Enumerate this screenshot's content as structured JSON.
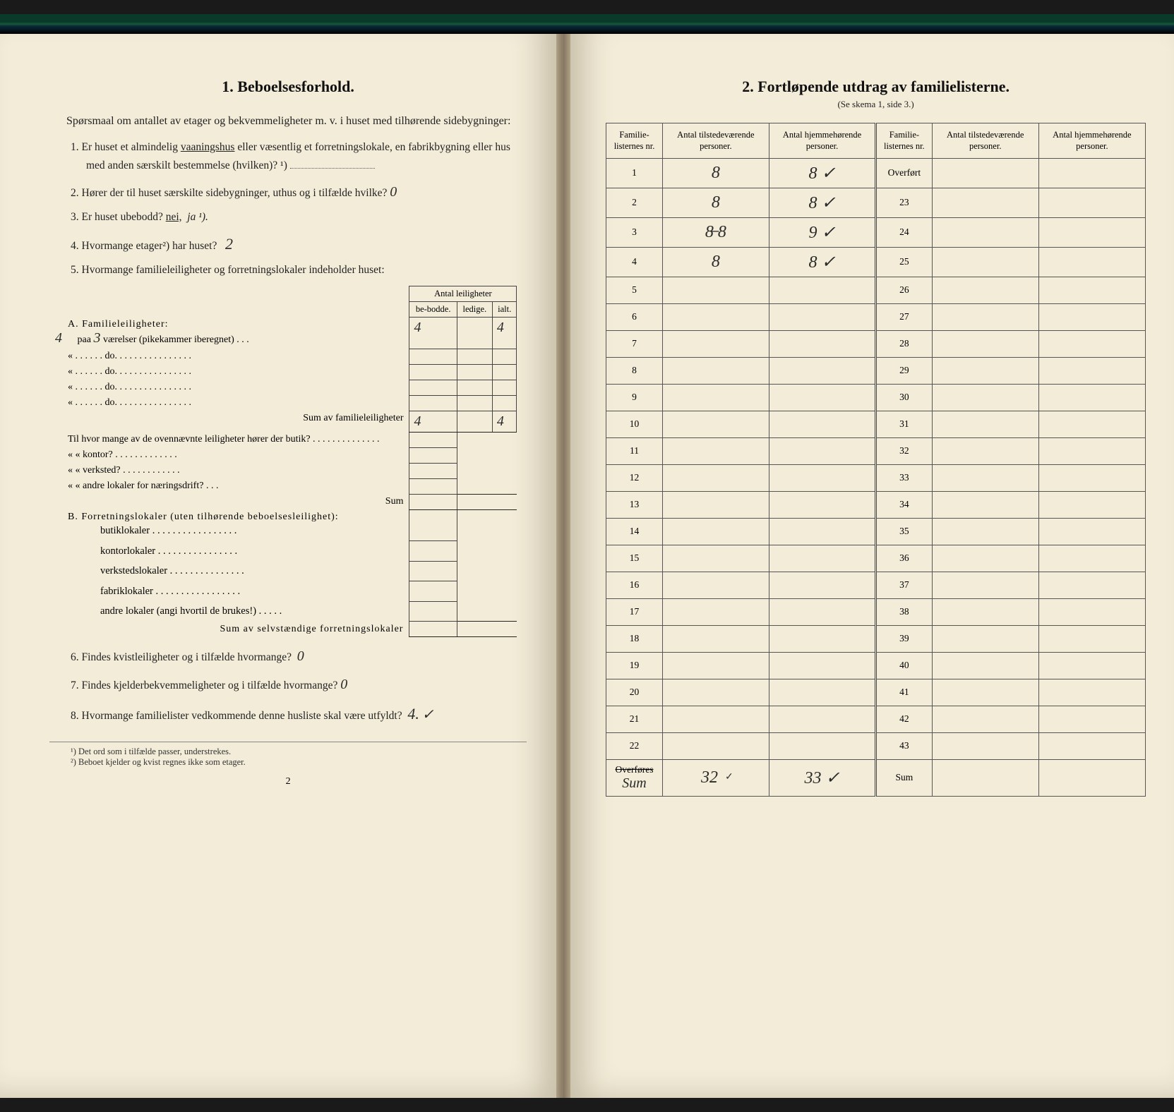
{
  "colors": {
    "paper": "#f2ecd8",
    "ink": "#222222",
    "rule": "#555555",
    "handwriting": "#2a2a2a"
  },
  "left": {
    "title": "1.   Beboelsesforhold.",
    "intro": "Spørsmaal om antallet av etager og bekvemmeligheter m. v. i huset med tilhørende sidebygninger:",
    "q1": "Er huset et almindelig vaaningshus eller væsentlig et forretningslokale, en fabrikbygning eller hus med anden særskilt bestemmelse (hvilken)? ¹)",
    "q1_underlined": "vaaningshus",
    "q2": "Hører der til huset særskilte sidebygninger, uthus og i tilfælde hvilke?",
    "q2_ans": "0",
    "q3_pre": "Er huset ubebodd?  ",
    "q3_nei": "nei,",
    "q3_ja": "ja ¹).",
    "q4": "Hvormange etager²) har huset?",
    "q4_ans": "2",
    "q5": "Hvormange familieleiligheter og forretningslokaler indeholder huset:",
    "table_header_top": "Antal leiligheter",
    "table_header_sub": [
      "be-bodde.",
      "ledige.",
      "ialt."
    ],
    "secA": "A. Familieleiligheter:",
    "rowA1_pre": "paa",
    "rowA1_hand": "3",
    "rowA1_post": "værelser (pikekammer iberegnet) . . .",
    "rowA1_bebodde": "4",
    "rowA1_ialt": "4",
    "rowA_do": "«  . . . . . .    do.    . . . . . . . . . . . . . . .",
    "rowA_sum": "Sum av familieleiligheter",
    "rowA_sum_bebodde": "4",
    "rowA_sum_ialt": "4",
    "til_hvor": "Til hvor mange av de ovennævnte leiligheter hører der butik? . . . . . . . . . . . . . .",
    "kontor": "«     «   kontor? . . . . . . . . . . . . .",
    "verksted": "«     «   verksted? . . . . . . . . . . . .",
    "andre": "«     «   andre lokaler for næringsdrift? . . .",
    "sum_label": "Sum",
    "secB": "B. Forretningslokaler (uten tilhørende beboelsesleilighet):",
    "b_butik": "butiklokaler . . . . . . . . . . . . . . . . .",
    "b_kontor": "kontorlokaler . . . . . . . . . . . . . . . .",
    "b_verk": "verkstedslokaler . . . . . . . . . . . . . . .",
    "b_fab": "fabriklokaler . . . . . . . . . . . . . . . . .",
    "b_andre": "andre lokaler (angi hvortil de brukes!) . . . . .",
    "b_sum": "Sum av selvstændige forretningslokaler",
    "q6": "Findes kvistleiligheter og i tilfælde hvormange?",
    "q6_ans": "0",
    "q7": "Findes kjelderbekvemmeligheter og i tilfælde hvormange?",
    "q7_ans": "0",
    "q8": "Hvormange familielister vedkommende denne husliste skal være utfyldt?",
    "q8_ans": "4.",
    "fn1": "¹) Det ord som i tilfælde passer, understrekes.",
    "fn2": "²) Beboet kjelder og kvist regnes ikke som etager.",
    "pagenum": "2"
  },
  "right": {
    "title": "2.   Fortløpende utdrag av familielisterne.",
    "subtitle": "(Se skema 1, side 3.)",
    "headers": [
      "Familie-listernes nr.",
      "Antal tilstedeværende personer.",
      "Antal hjemmehørende personer.",
      "Familie-listernes nr.",
      "Antal tilstedeværende personer.",
      "Antal hjemmehørende personer."
    ],
    "rows": [
      {
        "l": "1",
        "a": "8",
        "b": "8 ✓",
        "r": "Overført"
      },
      {
        "l": "2",
        "a": "8",
        "b": "8 ✓",
        "r": "23"
      },
      {
        "l": "3",
        "a": "8̶ 8",
        "b": "9 ✓",
        "r": "24"
      },
      {
        "l": "4",
        "a": "8",
        "b": "8 ✓",
        "r": "25"
      },
      {
        "l": "5",
        "r": "26"
      },
      {
        "l": "6",
        "r": "27"
      },
      {
        "l": "7",
        "r": "28"
      },
      {
        "l": "8",
        "r": "29"
      },
      {
        "l": "9",
        "r": "30"
      },
      {
        "l": "10",
        "r": "31"
      },
      {
        "l": "11",
        "r": "32"
      },
      {
        "l": "12",
        "r": "33"
      },
      {
        "l": "13",
        "r": "34"
      },
      {
        "l": "14",
        "r": "35"
      },
      {
        "l": "15",
        "r": "36"
      },
      {
        "l": "16",
        "r": "37"
      },
      {
        "l": "17",
        "r": "38"
      },
      {
        "l": "18",
        "r": "39"
      },
      {
        "l": "19",
        "r": "40"
      },
      {
        "l": "20",
        "r": "41"
      },
      {
        "l": "21",
        "r": "42"
      },
      {
        "l": "22",
        "r": "43"
      }
    ],
    "footer_l": "Overføres",
    "footer_a": "32",
    "footer_b": "33 ✓",
    "footer_r": "Sum",
    "col_widths_pct": [
      10,
      18,
      18,
      10,
      18,
      18
    ]
  }
}
